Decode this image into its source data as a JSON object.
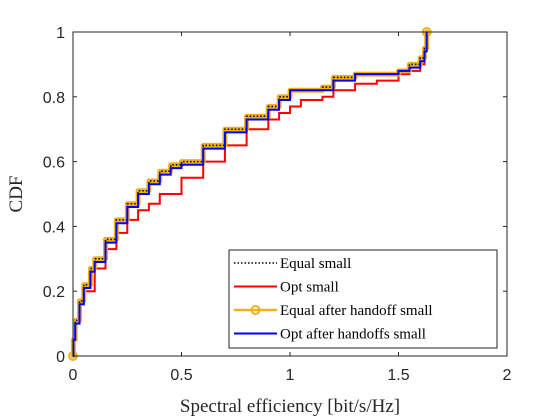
{
  "chart_data": {
    "type": "line",
    "title": "",
    "xlabel": "Spectral efficiency [bit/s/Hz]",
    "ylabel": "CDF",
    "xlim": [
      0,
      2
    ],
    "ylim": [
      0,
      1
    ],
    "x_ticks": [
      "0",
      "0.5",
      "1",
      "1.5",
      "2"
    ],
    "y_ticks": [
      "0",
      "0.2",
      "0.4",
      "0.6",
      "0.8",
      "1"
    ],
    "x_tick_values": [
      0,
      0.5,
      1,
      1.5,
      2
    ],
    "y_tick_values": [
      0,
      0.2,
      0.4,
      0.6,
      0.8,
      1
    ],
    "grid": false,
    "legend_position": "bottom-right",
    "series": [
      {
        "name": "Equal small",
        "color": "#000000",
        "style": "dotted",
        "x": [
          0,
          0.002,
          0.01,
          0.03,
          0.05,
          0.08,
          0.1,
          0.15,
          0.2,
          0.25,
          0.3,
          0.35,
          0.4,
          0.45,
          0.5,
          0.6,
          0.7,
          0.8,
          0.9,
          0.95,
          1.0,
          1.1,
          1.15,
          1.2,
          1.3,
          1.4,
          1.5,
          1.55,
          1.6,
          1.62,
          1.63
        ],
        "y": [
          0,
          0.05,
          0.11,
          0.17,
          0.22,
          0.27,
          0.3,
          0.36,
          0.42,
          0.47,
          0.51,
          0.54,
          0.57,
          0.59,
          0.6,
          0.65,
          0.7,
          0.74,
          0.77,
          0.8,
          0.82,
          0.82,
          0.83,
          0.86,
          0.87,
          0.87,
          0.88,
          0.9,
          0.92,
          0.95,
          1.0
        ]
      },
      {
        "name": "Opt small",
        "color": "#ff0000",
        "style": "solid",
        "x": [
          0,
          0.003,
          0.01,
          0.03,
          0.05,
          0.1,
          0.15,
          0.2,
          0.25,
          0.3,
          0.35,
          0.4,
          0.5,
          0.6,
          0.7,
          0.8,
          0.9,
          0.95,
          1.0,
          1.05,
          1.15,
          1.2,
          1.3,
          1.4,
          1.5,
          1.55,
          1.6,
          1.62,
          1.63
        ],
        "y": [
          0,
          0.05,
          0.11,
          0.16,
          0.2,
          0.27,
          0.33,
          0.38,
          0.42,
          0.45,
          0.47,
          0.5,
          0.55,
          0.6,
          0.65,
          0.7,
          0.73,
          0.75,
          0.77,
          0.79,
          0.8,
          0.82,
          0.84,
          0.85,
          0.87,
          0.88,
          0.9,
          0.95,
          1.0
        ]
      },
      {
        "name": "Equal after handoff small",
        "color": "#edb120",
        "style": "solid-marker",
        "marker": "circle",
        "x": [
          0,
          0.002,
          0.01,
          0.03,
          0.05,
          0.08,
          0.1,
          0.15,
          0.2,
          0.25,
          0.3,
          0.35,
          0.4,
          0.45,
          0.5,
          0.6,
          0.7,
          0.8,
          0.9,
          0.95,
          1.0,
          1.1,
          1.15,
          1.2,
          1.3,
          1.4,
          1.5,
          1.55,
          1.6,
          1.62,
          1.63
        ],
        "y": [
          0,
          0.05,
          0.11,
          0.17,
          0.22,
          0.27,
          0.3,
          0.36,
          0.42,
          0.47,
          0.51,
          0.54,
          0.57,
          0.59,
          0.6,
          0.65,
          0.7,
          0.74,
          0.77,
          0.8,
          0.82,
          0.82,
          0.83,
          0.86,
          0.87,
          0.87,
          0.88,
          0.9,
          0.92,
          0.95,
          1.0
        ]
      },
      {
        "name": "Opt after handoffs small",
        "color": "#0000ff",
        "style": "solid",
        "x": [
          0,
          0.002,
          0.01,
          0.03,
          0.05,
          0.08,
          0.1,
          0.15,
          0.2,
          0.25,
          0.3,
          0.35,
          0.4,
          0.45,
          0.5,
          0.6,
          0.7,
          0.8,
          0.9,
          0.95,
          1.0,
          1.1,
          1.15,
          1.2,
          1.3,
          1.4,
          1.5,
          1.55,
          1.6,
          1.62,
          1.63
        ],
        "y": [
          0,
          0.05,
          0.1,
          0.16,
          0.21,
          0.26,
          0.29,
          0.35,
          0.41,
          0.46,
          0.5,
          0.53,
          0.56,
          0.58,
          0.59,
          0.64,
          0.69,
          0.73,
          0.76,
          0.79,
          0.82,
          0.82,
          0.82,
          0.85,
          0.87,
          0.87,
          0.88,
          0.89,
          0.91,
          0.94,
          1.0
        ]
      }
    ]
  }
}
